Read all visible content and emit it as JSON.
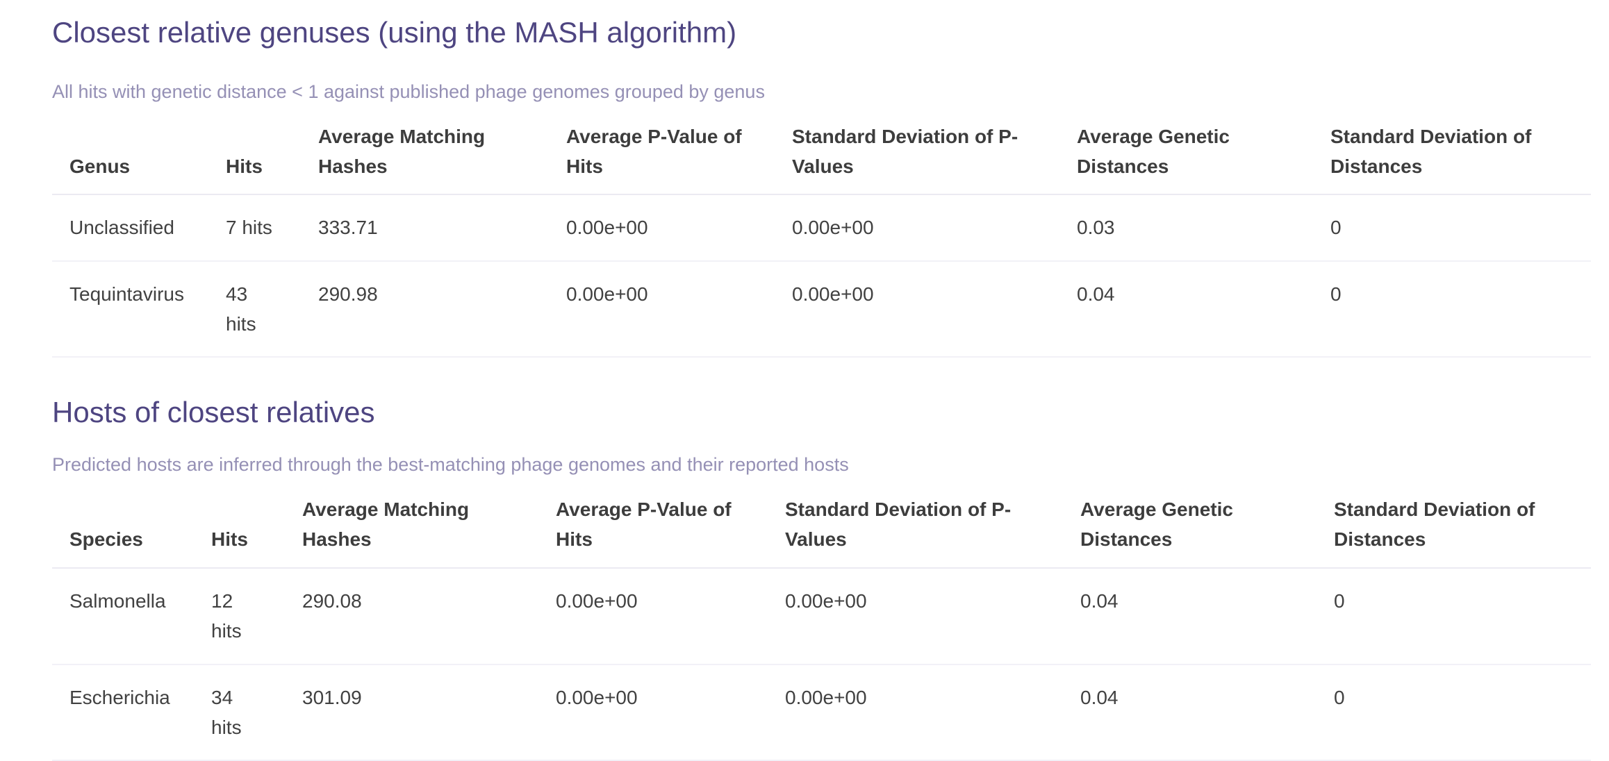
{
  "colors": {
    "heading": "#4e4581",
    "subtitle": "#9590b5",
    "header_text": "#3d3d3d",
    "body_text": "#414141",
    "row_border": "#f2f1f7",
    "background": "#ffffff"
  },
  "sections": [
    {
      "title": "Closest relative genuses (using the MASH algorithm)",
      "subtitle": "All hits with genetic distance < 1 against published phage genomes grouped by genus",
      "table": {
        "columns": [
          "Genus",
          "Hits",
          "Average Matching Hashes",
          "Average P-Value of Hits",
          "Standard Deviation of P-Values",
          "Average Genetic Distances",
          "Standard Deviation of Distances"
        ],
        "rows": [
          [
            "Unclassified",
            "7 hits",
            "333.71",
            "0.00e+00",
            "0.00e+00",
            "0.03",
            "0"
          ],
          [
            "Tequintavirus",
            "43 hits",
            "290.98",
            "0.00e+00",
            "0.00e+00",
            "0.04",
            "0"
          ]
        ]
      }
    },
    {
      "title": "Hosts of closest relatives",
      "subtitle": "Predicted hosts are inferred through the best-matching phage genomes and their reported hosts",
      "table": {
        "columns": [
          "Species",
          "Hits",
          "Average Matching Hashes",
          "Average P-Value of Hits",
          "Standard Deviation of P-Values",
          "Average Genetic Distances",
          "Standard Deviation of Distances"
        ],
        "rows": [
          [
            "Salmonella",
            "12 hits",
            "290.08",
            "0.00e+00",
            "0.00e+00",
            "0.04",
            "0"
          ],
          [
            "Escherichia",
            "34 hits",
            "301.09",
            "0.00e+00",
            "0.00e+00",
            "0.04",
            "0"
          ]
        ]
      }
    }
  ]
}
